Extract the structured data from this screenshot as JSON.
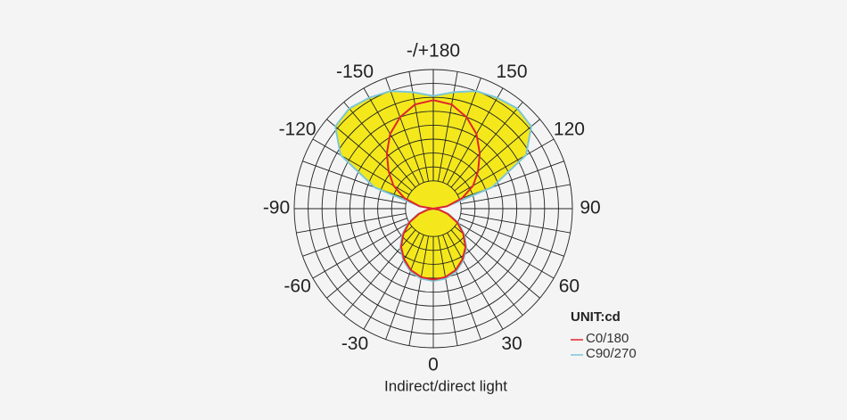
{
  "chart_data": {
    "type": "polar",
    "theta": [
      -180,
      -170,
      -160,
      -150,
      -140,
      -130,
      -120,
      -110,
      -100,
      -90,
      -80,
      -70,
      -60,
      -50,
      -40,
      -30,
      -20,
      -10,
      0,
      10,
      20,
      30,
      40,
      50,
      60,
      70,
      80,
      90,
      100,
      110,
      120,
      130,
      140,
      150,
      160,
      170,
      180
    ],
    "series": [
      {
        "name": "C0/180",
        "color": "#e0262b",
        "values": [
          78,
          76,
          70,
          62,
          52,
          42,
          33,
          22,
          10,
          0,
          4,
          11,
          20,
          28,
          36,
          42,
          47,
          50,
          51,
          50,
          47,
          42,
          36,
          28,
          20,
          11,
          4,
          0,
          10,
          22,
          33,
          42,
          52,
          62,
          70,
          76,
          78
        ]
      },
      {
        "name": "C90/270",
        "color": "#7cc6d6",
        "values": [
          81,
          85,
          90,
          92,
          94,
          92,
          77,
          45,
          10,
          0,
          5,
          12,
          21,
          29,
          37,
          43,
          48,
          51,
          52,
          51,
          48,
          43,
          37,
          29,
          21,
          12,
          5,
          0,
          10,
          45,
          77,
          92,
          94,
          92,
          90,
          85,
          81
        ]
      }
    ],
    "fill": "#f4e81c",
    "rlim": [
      0,
      100
    ],
    "rticks": [
      20,
      30,
      40,
      50,
      60,
      70,
      80,
      90,
      100
    ],
    "thetaticks": [
      0,
      30,
      60,
      90,
      120,
      150,
      {
        "value": 180,
        "label": "-/+180"
      },
      -150,
      -120,
      -90,
      -60,
      -30
    ],
    "unit": "UNIT:cd",
    "xlabel": "Indirect/direct light"
  }
}
